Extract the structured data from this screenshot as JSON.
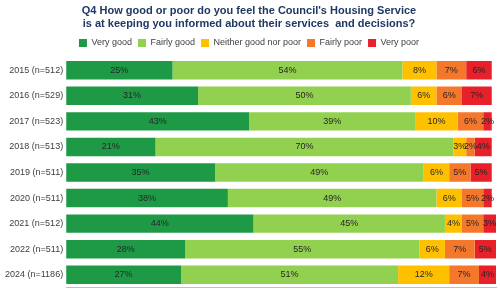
{
  "chart_data": {
    "type": "bar",
    "orientation": "horizontal",
    "stacked": true,
    "data_labels": true,
    "grid": false,
    "legend": "top",
    "tick_labels": "y",
    "title": [
      "Q4 How good or poor do you feel the Council's Housing Service",
      "is at keeping you informed about their services  and decisions?"
    ],
    "categories": [
      "2015 (n=512)",
      "2016 (n=529)",
      "2017 (n=523)",
      "2018 (n=513)",
      "2019 (n=511)",
      "2020 (n=511)",
      "2021 (n=512)",
      "2022 (n=511)",
      "2024 (n=1186)"
    ],
    "xlim": [
      0,
      101
    ],
    "series": [
      {
        "name": "Very good",
        "color": "#1e9a46",
        "values": [
          25,
          31,
          43,
          21,
          35,
          38,
          44,
          28,
          27
        ],
        "value_labels": [
          "25%",
          "31%",
          "43%",
          "21%",
          "35%",
          "38%",
          "44%",
          "28%",
          "27%"
        ]
      },
      {
        "name": "Fairly good",
        "color": "#92d050",
        "values": [
          54,
          50,
          39,
          70,
          49,
          49,
          45,
          55,
          51
        ],
        "value_labels": [
          "54%",
          "50%",
          "39%",
          "70%",
          "49%",
          "49%",
          "45%",
          "55%",
          "51%"
        ]
      },
      {
        "name": "Neither good nor poor",
        "color": "#ffc000",
        "values": [
          8,
          6,
          10,
          3,
          6,
          6,
          4,
          6,
          12
        ],
        "value_labels": [
          "8%",
          "6%",
          "10%",
          "3%",
          "6%",
          "6%",
          "4%",
          "6%",
          "12%"
        ]
      },
      {
        "name": "Fairly poor",
        "color": "#f4782c",
        "values": [
          7,
          6,
          6,
          2,
          5,
          5,
          5,
          7,
          7
        ],
        "value_labels": [
          "7%",
          "6%",
          "6%",
          "2%",
          "5%",
          "5%",
          "5%",
          "7%",
          "7%"
        ]
      },
      {
        "name": "Very poor",
        "color": "#e8202a",
        "values": [
          6,
          7,
          2,
          4,
          5,
          2,
          3,
          5,
          4
        ],
        "value_labels": [
          "6%",
          "7%",
          "2%",
          "4%",
          "5%",
          "2%",
          "3%",
          "5%",
          "4%"
        ]
      }
    ]
  }
}
